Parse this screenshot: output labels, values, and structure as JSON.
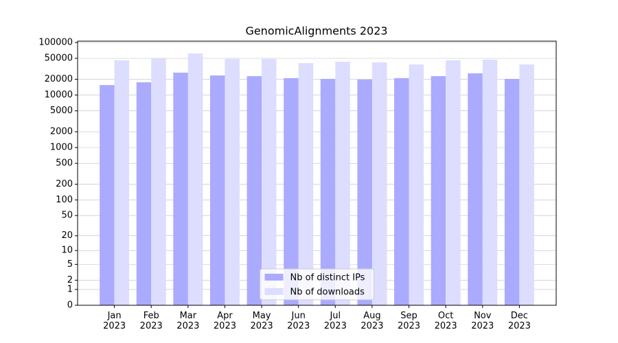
{
  "chart_data": {
    "type": "bar",
    "title": "GenomicAlignments 2023",
    "categories": [
      "Jan\n2023",
      "Feb\n2023",
      "Mar\n2023",
      "Apr\n2023",
      "May\n2023",
      "Jun\n2023",
      "Jul\n2023",
      "Aug\n2023",
      "Sep\n2023",
      "Oct\n2023",
      "Nov\n2023",
      "Dec\n2023"
    ],
    "series": [
      {
        "name": "Nb of distinct IPs",
        "color": "#aaaaff",
        "values": [
          15500,
          17500,
          26700,
          23600,
          22900,
          21000,
          20300,
          19700,
          21000,
          22900,
          25900,
          20300
        ]
      },
      {
        "name": "Nb of downloads",
        "color": "#ddddff",
        "values": [
          45800,
          50100,
          61800,
          48600,
          48600,
          40600,
          43100,
          41800,
          38200,
          45800,
          47200,
          38200
        ]
      }
    ],
    "y_scale": "log1p",
    "ylim": [
      0,
      106000
    ],
    "yticks": [
      0,
      1,
      2,
      5,
      10,
      20,
      50,
      100,
      200,
      500,
      1000,
      2000,
      5000,
      10000,
      20000,
      50000,
      100000
    ],
    "grid": true,
    "legend": "lower center"
  }
}
